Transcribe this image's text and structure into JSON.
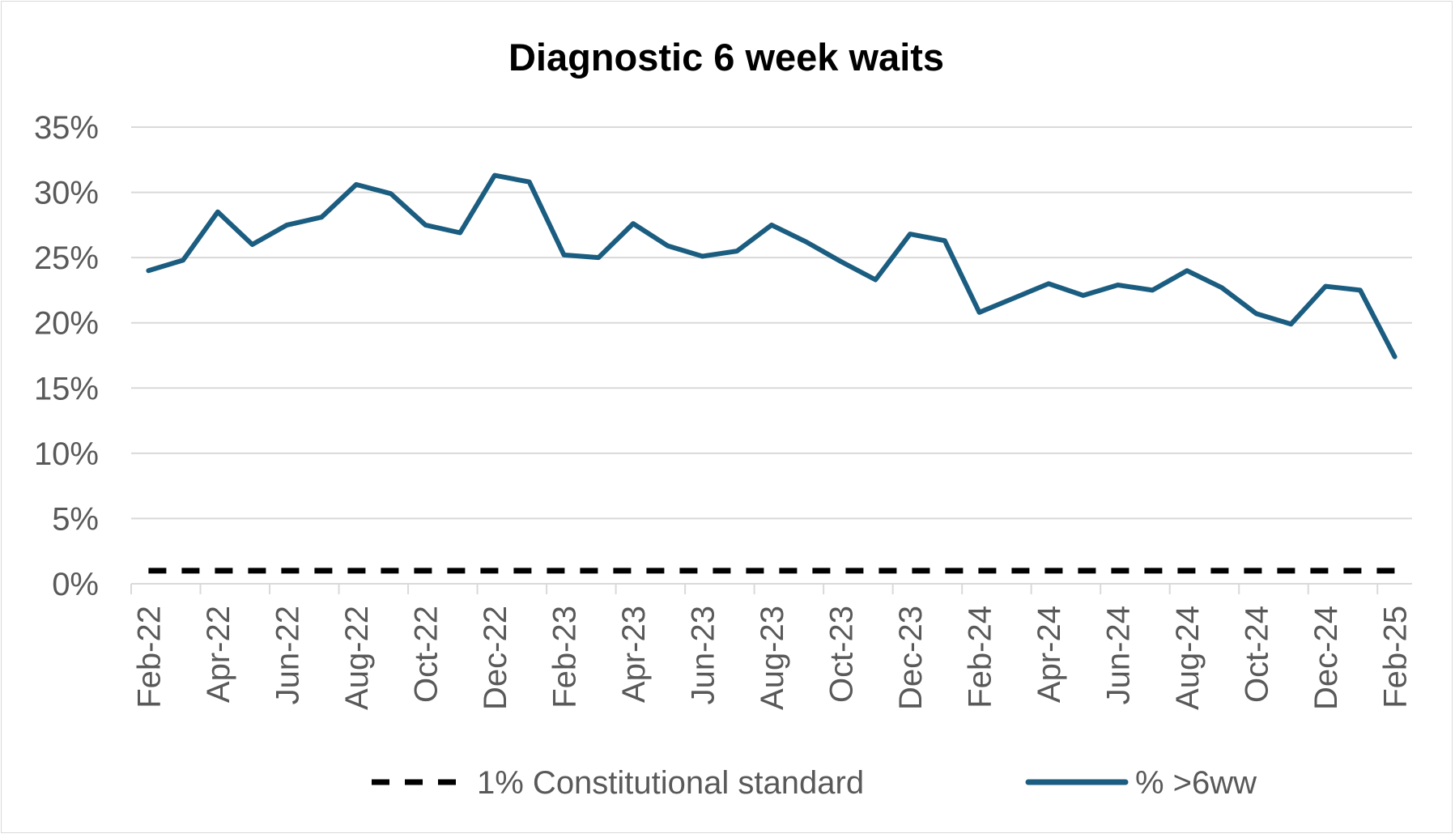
{
  "chart_data": {
    "type": "line",
    "title": "Diagnostic 6 week waits",
    "xlabel": "",
    "ylabel": "",
    "ylim": [
      0,
      35
    ],
    "ytick_values": [
      0,
      5,
      10,
      15,
      20,
      25,
      30,
      35
    ],
    "ytick_labels": [
      "0%",
      "5%",
      "10%",
      "15%",
      "20%",
      "25%",
      "30%",
      "35%"
    ],
    "grid": true,
    "legend_position": "bottom",
    "x": [
      "Feb-22",
      "Mar-22",
      "Apr-22",
      "May-22",
      "Jun-22",
      "Jul-22",
      "Aug-22",
      "Sep-22",
      "Oct-22",
      "Nov-22",
      "Dec-22",
      "Jan-23",
      "Feb-23",
      "Mar-23",
      "Apr-23",
      "May-23",
      "Jun-23",
      "Jul-23",
      "Aug-23",
      "Sep-23",
      "Oct-23",
      "Nov-23",
      "Dec-23",
      "Jan-24",
      "Feb-24",
      "Mar-24",
      "Apr-24",
      "May-24",
      "Jun-24",
      "Jul-24",
      "Aug-24",
      "Sep-24",
      "Oct-24",
      "Nov-24",
      "Dec-24",
      "Jan-25",
      "Feb-25"
    ],
    "xtick_labels": [
      "Feb-22",
      "Apr-22",
      "Jun-22",
      "Aug-22",
      "Oct-22",
      "Dec-22",
      "Feb-23",
      "Apr-23",
      "Jun-23",
      "Aug-23",
      "Oct-23",
      "Dec-23",
      "Feb-24",
      "Apr-24",
      "Jun-24",
      "Aug-24",
      "Oct-24",
      "Dec-24",
      "Feb-25"
    ],
    "series": [
      {
        "name": "1% Constitutional standard",
        "color": "#000000",
        "style": "dashed",
        "values": [
          1,
          1,
          1,
          1,
          1,
          1,
          1,
          1,
          1,
          1,
          1,
          1,
          1,
          1,
          1,
          1,
          1,
          1,
          1,
          1,
          1,
          1,
          1,
          1,
          1,
          1,
          1,
          1,
          1,
          1,
          1,
          1,
          1,
          1,
          1,
          1,
          1
        ]
      },
      {
        "name": "% >6ww",
        "color": "#1b5d80",
        "style": "solid",
        "values": [
          24.0,
          24.8,
          28.5,
          26.0,
          27.5,
          28.1,
          30.6,
          29.9,
          27.5,
          26.9,
          31.3,
          30.8,
          25.2,
          25.0,
          27.6,
          25.9,
          25.1,
          25.5,
          27.5,
          26.2,
          24.7,
          23.3,
          26.8,
          26.3,
          20.8,
          21.9,
          23.0,
          22.1,
          22.9,
          22.5,
          24.0,
          22.7,
          20.7,
          19.9,
          22.8,
          22.5,
          17.4
        ]
      }
    ]
  }
}
